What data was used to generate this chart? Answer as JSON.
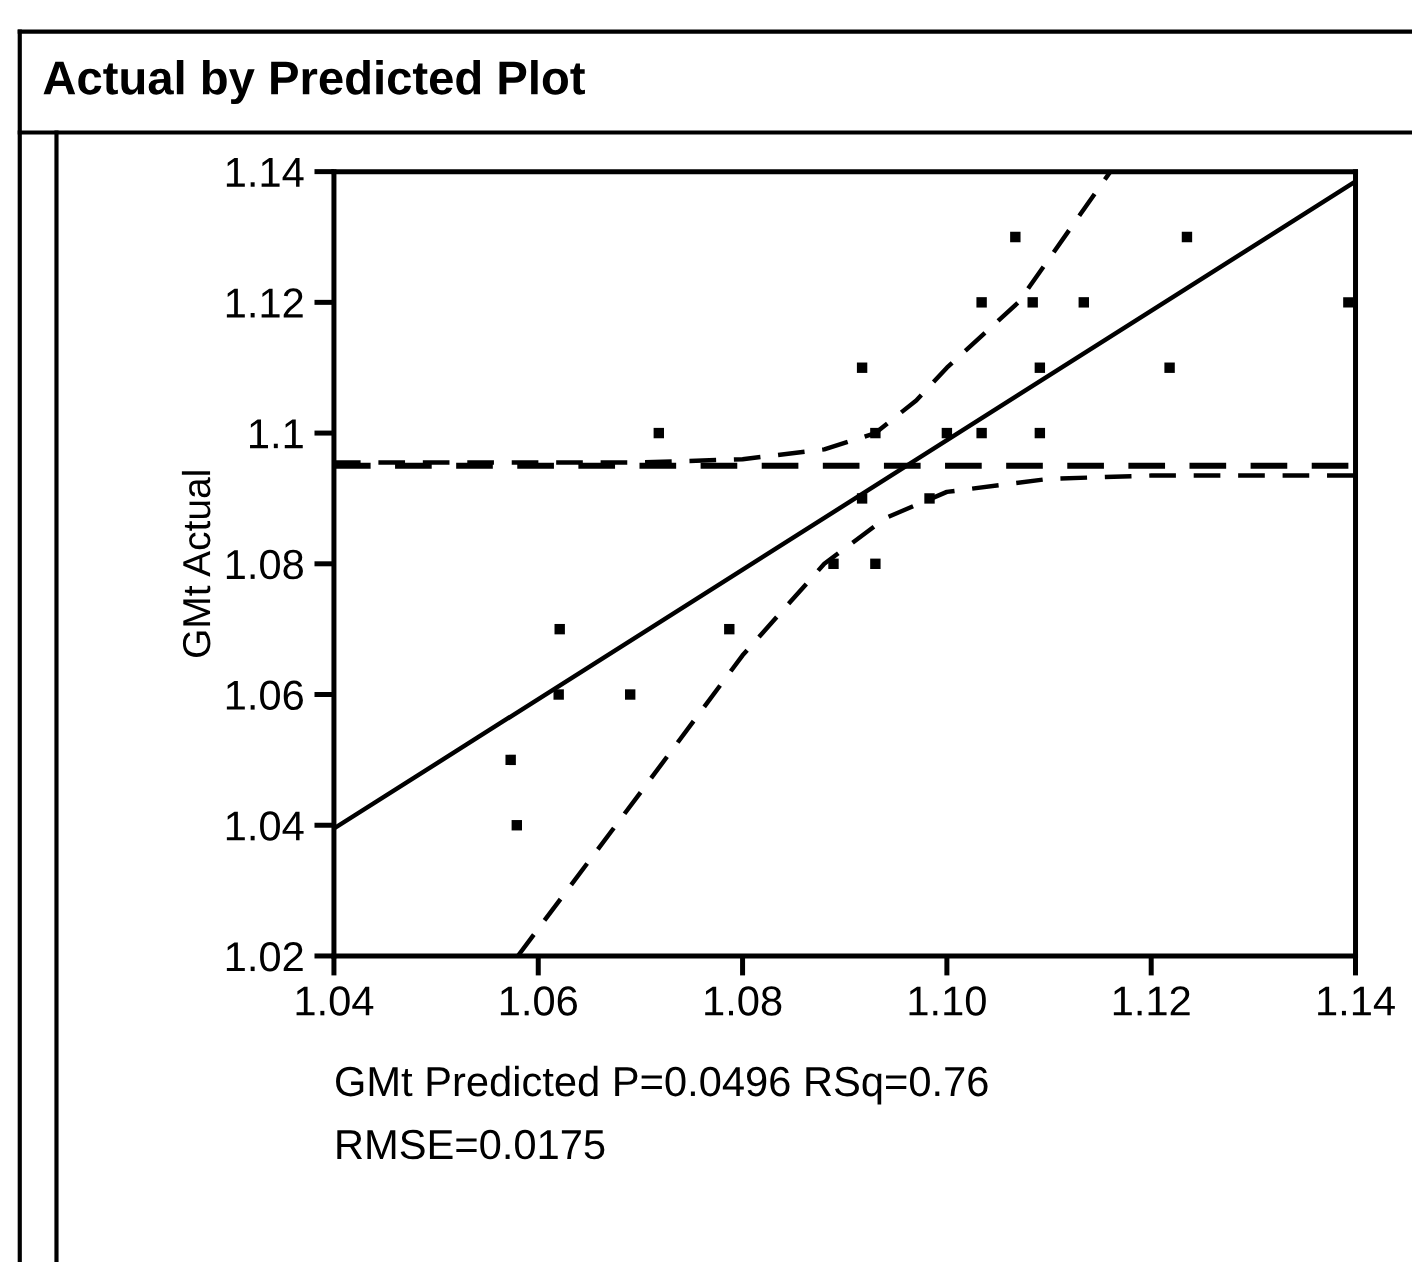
{
  "chart_data": {
    "type": "scatter",
    "title": "Actual by Predicted Plot",
    "xlabel": "GMt Predicted P=0.0496 RSq=0.76\nRMSE=0.0175",
    "ylabel": "GMt Actual",
    "series": [
      {
        "color": "#000000",
        "marker": "square",
        "x": [
          1.0573,
          1.0579,
          1.0621,
          1.062,
          1.069,
          1.0718,
          1.0787,
          1.0917,
          1.093,
          1.0917,
          1.0889,
          1.093,
          1.0983,
          1.1,
          1.1034,
          1.1091,
          1.1067,
          1.1235,
          1.1034,
          1.1084,
          1.1134,
          1.1393,
          1.1091,
          1.1218
        ],
        "values": [
          1.05,
          1.04,
          1.07,
          1.06,
          1.06,
          1.1,
          1.07,
          1.11,
          1.1,
          1.09,
          1.08,
          1.08,
          1.09,
          1.1,
          1.1,
          1.1,
          1.13,
          1.13,
          1.12,
          1.12,
          1.12,
          1.12,
          1.11,
          1.11
        ]
      },
      {
        "type": "line",
        "color": "#000000",
        "line_style": "solid",
        "x": [
          1.04,
          1.14
        ],
        "values": [
          1.0395,
          1.1385
        ]
      },
      {
        "type": "line",
        "color": "#000000",
        "line_style": "dashed",
        "x": [
          1.04,
          1.07,
          1.08,
          1.088,
          1.093,
          1.097,
          1.1,
          1.107,
          1.116
        ],
        "values": [
          1.0955,
          1.0955,
          1.096,
          1.0975,
          1.1,
          1.105,
          1.11,
          1.12,
          1.14
        ]
      },
      {
        "type": "line",
        "color": "#000000",
        "line_style": "dashed",
        "x": [
          1.058,
          1.07,
          1.08,
          1.088,
          1.094,
          1.1,
          1.11,
          1.12,
          1.14
        ],
        "values": [
          1.02,
          1.045,
          1.066,
          1.08,
          1.087,
          1.091,
          1.093,
          1.0935,
          1.0935
        ]
      }
    ],
    "ref_lines": [
      {
        "axis": "y",
        "value": 1.095,
        "line_style": "dashed",
        "color": "#000000"
      }
    ],
    "xlim": [
      1.04,
      1.14
    ],
    "ylim": [
      1.02,
      1.14
    ],
    "xticks": [
      1.04,
      1.06,
      1.08,
      {
        "value": 1.1,
        "label": "1.10"
      },
      1.12,
      1.14
    ],
    "yticks": [
      1.02,
      1.04,
      1.06,
      1.08,
      1.1,
      1.12,
      1.14
    ],
    "grid": false,
    "legend": false
  }
}
